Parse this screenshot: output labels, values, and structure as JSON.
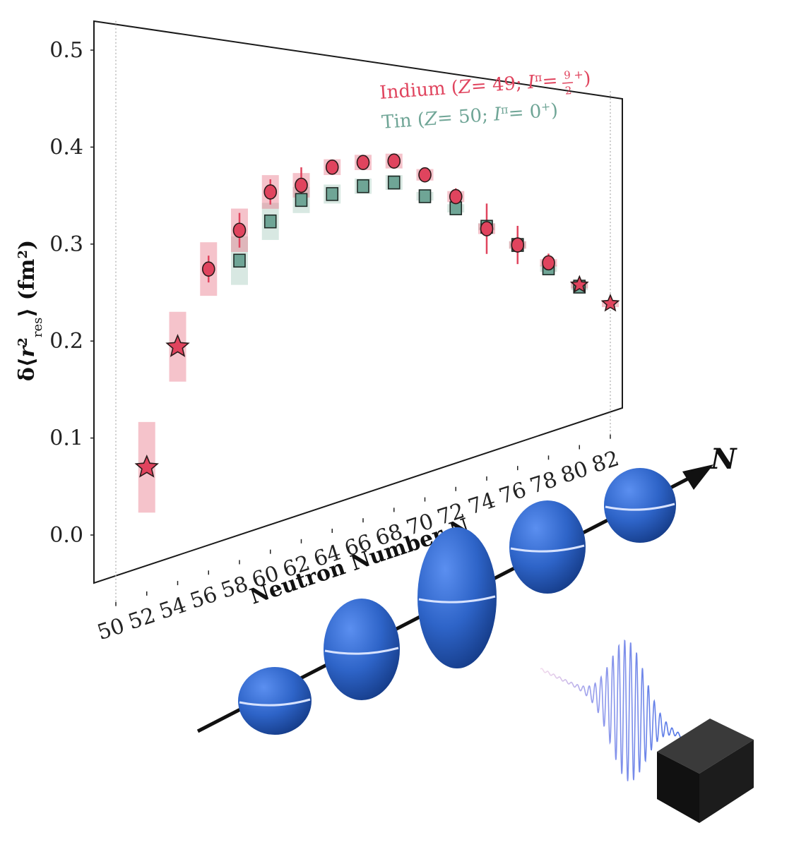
{
  "chart_data": {
    "type": "scatter",
    "xlabel": "Neutron Number N",
    "ylabel_parts": {
      "prefix": "δ⟨",
      "r": "r",
      "sup": "2",
      "sub": "res",
      "suffix": "⟩ (fm",
      "unit_sup": "2",
      "close": ")"
    },
    "xlim": [
      49,
      83
    ],
    "ylim": [
      -0.05,
      0.53
    ],
    "x_ticks": [
      50,
      52,
      54,
      56,
      58,
      60,
      62,
      64,
      66,
      68,
      70,
      72,
      74,
      76,
      78,
      80,
      82
    ],
    "y_ticks": [
      0.0,
      0.1,
      0.2,
      0.3,
      0.4,
      0.5
    ],
    "y_tick_labels": [
      "0.0",
      "0.1",
      "0.2",
      "0.3",
      "0.4",
      "0.5"
    ],
    "reference_lines_x": [
      50,
      82
    ],
    "series": [
      {
        "name": "Indium",
        "marker": "circle",
        "color": "#e0445e",
        "band_color": "#e8798c",
        "x": [
          56,
          58,
          60,
          62,
          64,
          66,
          68,
          70,
          72,
          74,
          76,
          78
        ],
        "y": [
          0.267,
          0.309,
          0.353,
          0.361,
          0.384,
          0.391,
          0.394,
          0.376,
          0.345,
          0.296,
          0.268,
          0.235
        ],
        "err": [
          0.015,
          0.02,
          0.015,
          0.022,
          0.008,
          0.008,
          0.008,
          0.006,
          0.012,
          0.038,
          0.03,
          0.015
        ],
        "band": [
          0.03,
          0.025,
          0.02,
          0.015,
          0.01,
          0.01,
          0.01,
          0.008,
          0.008,
          0.008,
          0.006,
          0.006
        ]
      },
      {
        "name": "Indium (stars)",
        "marker": "star",
        "color": "#e0445e",
        "band_color": "#e8798c",
        "x": [
          52,
          54,
          80,
          82
        ],
        "y": [
          0.062,
          0.185,
          0.192,
          0.151
        ],
        "err": [
          0,
          0,
          0,
          0
        ],
        "band": [
          0.048,
          0.038,
          0.004,
          0.003
        ]
      },
      {
        "name": "Tin",
        "marker": "square",
        "color": "#6fa596",
        "band_color": "#a8cbbf",
        "x": [
          58,
          60,
          62,
          64,
          66,
          68,
          70,
          72,
          74,
          76,
          78,
          80
        ],
        "y": [
          0.274,
          0.318,
          0.343,
          0.35,
          0.36,
          0.365,
          0.346,
          0.328,
          0.299,
          0.268,
          0.226,
          0.189
        ],
        "err": [
          0,
          0,
          0,
          0,
          0,
          0,
          0,
          0,
          0,
          0,
          0,
          0
        ],
        "band": [
          0.028,
          0.022,
          0.016,
          0.012,
          0.01,
          0.01,
          0.006,
          0.006,
          0.004,
          0.004,
          0.004,
          0.003
        ]
      }
    ],
    "legend": {
      "placement": "top-right",
      "entries": [
        {
          "element": "Indium",
          "open": " (",
          "Z": "Z",
          "zval": "= 49; ",
          "I": "I",
          "pi": "π",
          "eq": "= ",
          "num": "9",
          "den": "2",
          "parity": "+",
          "close": ")",
          "color": "#e0445e"
        },
        {
          "element": "Tin",
          "open": " (",
          "Z": "Z",
          "zval": "= 50; ",
          "I": "I",
          "pi": "π",
          "eq": "= 0",
          "parity": "+",
          "close": ")",
          "color": "#6fa596"
        }
      ]
    }
  },
  "illustration": {
    "axis_label": "N",
    "nucleus_color": "#2e64c8",
    "wave_color": "#5a7fe6",
    "box_color": "#1b1b1b"
  }
}
